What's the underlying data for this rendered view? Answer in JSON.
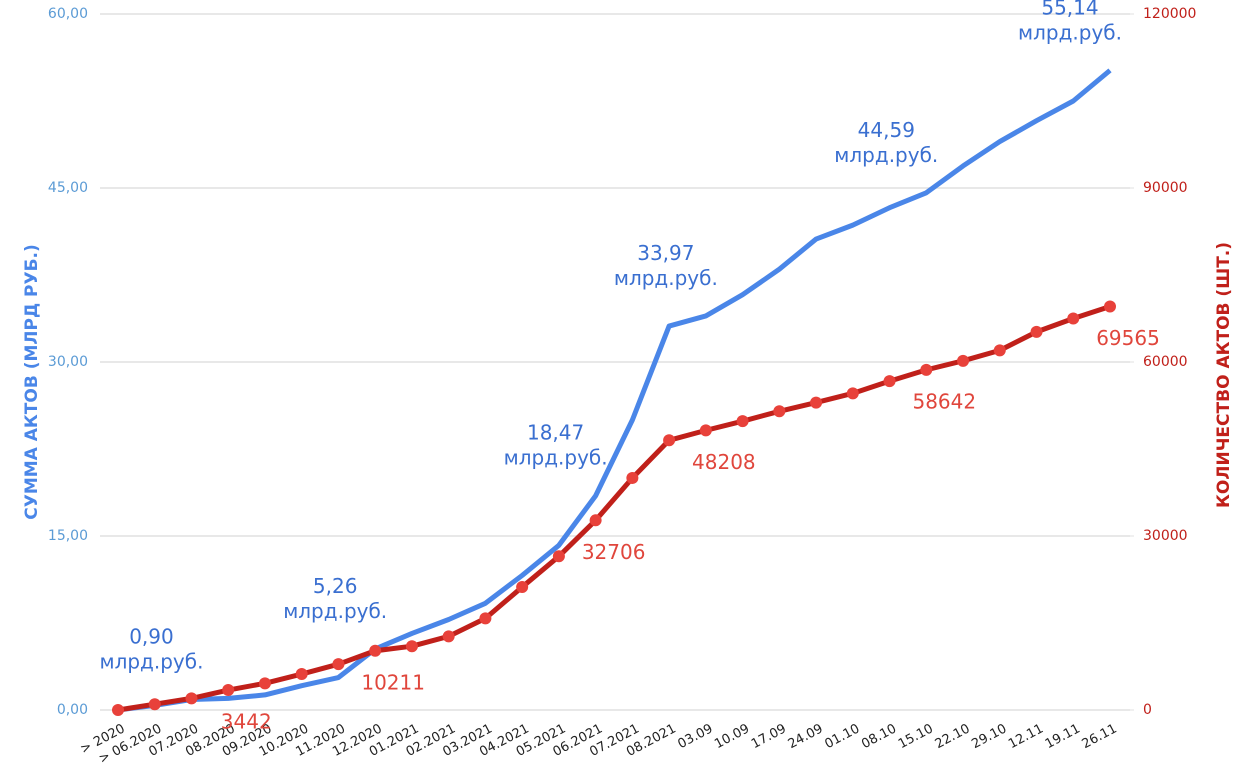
{
  "chart_data": {
    "type": "line",
    "categories": [
      "> 2020",
      "> 06.2020",
      "07.2020",
      "08.2020",
      "09.2020",
      "10.2020",
      "11.2020",
      "12.2020",
      "01.2021",
      "02.2021",
      "03.2021",
      "04.2021",
      "05.2021",
      "06.2021",
      "07.2021",
      "08.2021",
      "03.09",
      "10.09",
      "17.09",
      "24.09",
      "01.10",
      "08.10",
      "15.10",
      "22.10",
      "29.10",
      "12.11",
      "19.11",
      "26.11"
    ],
    "ylabel": "СУММА АКТОВ (МЛРД РУБ.)",
    "y2label": "КОЛИЧЕСТВО АКТОВ (ШТ.)",
    "ylim": [
      0,
      60
    ],
    "yticks": [
      {
        "value": 0,
        "label": "0,00"
      },
      {
        "value": 15,
        "label": "15,00"
      },
      {
        "value": 30,
        "label": "30,00"
      },
      {
        "value": 45,
        "label": "45,00"
      },
      {
        "value": 60,
        "label": "60,00"
      }
    ],
    "y2lim": [
      0,
      120000
    ],
    "y2ticks": [
      0,
      30000,
      60000,
      90000,
      120000
    ],
    "grid": true,
    "series": [
      {
        "name": "Сумма актов",
        "color": "#4a86e8",
        "markers": false,
        "values": [
          0,
          0.4,
          0.9,
          1.0,
          1.3,
          2.1,
          2.8,
          5.26,
          6.6,
          7.8,
          9.2,
          11.6,
          14.2,
          18.47,
          25.0,
          33.1,
          33.97,
          35.8,
          38.0,
          40.6,
          41.8,
          43.3,
          44.59,
          46.9,
          49.0,
          50.8,
          52.5,
          55.14
        ],
        "value_labels": [
          null,
          null,
          "0,90 млрд.руб.",
          null,
          null,
          null,
          null,
          "5,26 млрд.руб.",
          null,
          null,
          null,
          null,
          null,
          "18,47 млрд.руб.",
          null,
          null,
          "33,97 млрд.руб.",
          null,
          null,
          null,
          null,
          null,
          "44,59 млрд.руб.",
          null,
          null,
          null,
          null,
          "55,14 млрд.руб."
        ]
      },
      {
        "name": "Количество актов",
        "color": "#c0201a",
        "marker_color": "#e8413a",
        "markers": true,
        "axis": "y2",
        "values": [
          0,
          1000,
          2000,
          3442,
          4600,
          6200,
          7900,
          10211,
          11000,
          12700,
          15800,
          21200,
          26500,
          32706,
          40000,
          46500,
          48208,
          49800,
          51500,
          53000,
          54600,
          56700,
          58642,
          60200,
          62000,
          65200,
          67500,
          69565
        ]
      }
    ]
  }
}
